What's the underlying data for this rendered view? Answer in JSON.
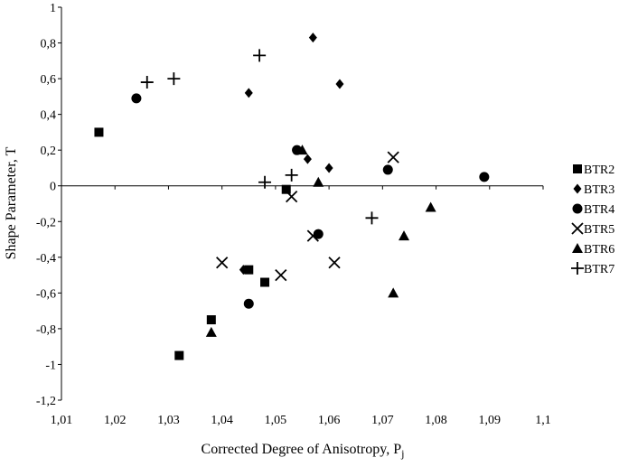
{
  "chart_data": {
    "type": "scatter",
    "title": "",
    "xlabel": "Corrected Degree of Anisotropy, P",
    "xlabel_sub": "j",
    "ylabel": "Shape Parameter, T",
    "xlim": [
      1.01,
      1.1
    ],
    "ylim": [
      -1.2,
      1
    ],
    "x_ticks": [
      1.01,
      1.02,
      1.03,
      1.04,
      1.05,
      1.06,
      1.07,
      1.08,
      1.09,
      1.1
    ],
    "x_tick_labels": [
      "1,01",
      "1,02",
      "1,03",
      "1,04",
      "1,05",
      "1,06",
      "1,07",
      "1,08",
      "1,09",
      "1,1"
    ],
    "y_ticks": [
      1,
      0.8,
      0.6,
      0.4,
      0.2,
      0,
      -0.2,
      -0.4,
      -0.6,
      -0.8,
      -1,
      -1.2
    ],
    "y_tick_labels": [
      "1",
      "0,8",
      "0,6",
      "0,4",
      "0,2",
      "0",
      "-0,2",
      "-0,4",
      "-0,6",
      "-0,8",
      "-1",
      "-1,2"
    ],
    "grid": false,
    "legend_position": "right",
    "series": [
      {
        "name": "BTR2",
        "marker": "square",
        "color": "#000000",
        "points": [
          [
            1.017,
            0.3
          ],
          [
            1.032,
            -0.95
          ],
          [
            1.038,
            -0.75
          ],
          [
            1.045,
            -0.47
          ],
          [
            1.048,
            -0.54
          ],
          [
            1.052,
            -0.02
          ]
        ]
      },
      {
        "name": "BTR3",
        "marker": "diamond",
        "color": "#000000",
        "points": [
          [
            1.045,
            0.52
          ],
          [
            1.057,
            0.83
          ],
          [
            1.062,
            0.57
          ],
          [
            1.056,
            0.15
          ],
          [
            1.06,
            0.1
          ],
          [
            1.044,
            -0.47
          ]
        ]
      },
      {
        "name": "BTR4",
        "marker": "circle",
        "color": "#000000",
        "points": [
          [
            1.024,
            0.49
          ],
          [
            1.054,
            0.2
          ],
          [
            1.071,
            0.09
          ],
          [
            1.089,
            0.05
          ],
          [
            1.058,
            -0.27
          ],
          [
            1.045,
            -0.66
          ]
        ]
      },
      {
        "name": "BTR5",
        "marker": "x",
        "color": "#000000",
        "points": [
          [
            1.04,
            -0.43
          ],
          [
            1.051,
            -0.5
          ],
          [
            1.053,
            -0.06
          ],
          [
            1.057,
            -0.28
          ],
          [
            1.061,
            -0.43
          ],
          [
            1.072,
            0.16
          ]
        ]
      },
      {
        "name": "BTR6",
        "marker": "triangle",
        "color": "#000000",
        "points": [
          [
            1.038,
            -0.82
          ],
          [
            1.055,
            0.2
          ],
          [
            1.058,
            0.02
          ],
          [
            1.072,
            -0.6
          ],
          [
            1.074,
            -0.28
          ],
          [
            1.079,
            -0.12
          ]
        ]
      },
      {
        "name": "BTR7",
        "marker": "plus",
        "color": "#000000",
        "points": [
          [
            1.026,
            0.58
          ],
          [
            1.031,
            0.6
          ],
          [
            1.047,
            0.73
          ],
          [
            1.048,
            0.02
          ],
          [
            1.053,
            0.06
          ],
          [
            1.068,
            -0.18
          ]
        ]
      }
    ]
  }
}
